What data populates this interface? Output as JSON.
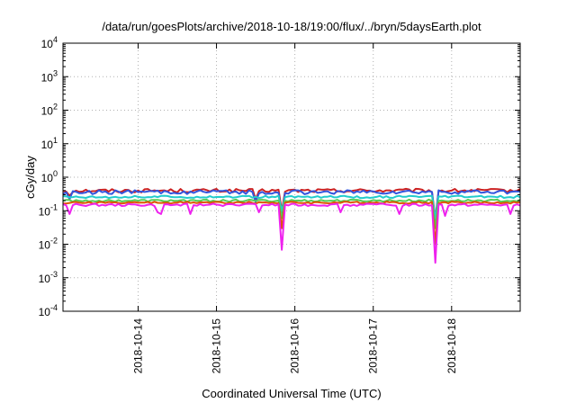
{
  "chart_data": {
    "type": "line",
    "title": "/data/run/goesPlots/archive/2018-10-18/19:00/flux/../bryn/5daysEarth.plot",
    "xlabel": "Coordinated Universal Time (UTC)",
    "ylabel": "cGy/day",
    "y_scale": "log",
    "ylim": [
      0.0001,
      10000
    ],
    "y_ticks": [
      {
        "base": "10",
        "exp": "-4"
      },
      {
        "base": "10",
        "exp": "-3"
      },
      {
        "base": "10",
        "exp": "-2"
      },
      {
        "base": "10",
        "exp": "-1"
      },
      {
        "base": "10",
        "exp": "0"
      },
      {
        "base": "10",
        "exp": "1"
      },
      {
        "base": "10",
        "exp": "2"
      },
      {
        "base": "10",
        "exp": "3"
      },
      {
        "base": "10",
        "exp": "4"
      }
    ],
    "xlim": [
      "2018-10-13T01:00",
      "2018-10-18T21:00"
    ],
    "x_ticks": [
      "2018-10-14",
      "2018-10-15",
      "2018-10-16",
      "2018-10-17",
      "2018-10-18"
    ],
    "grid": true,
    "series": [
      {
        "color": "#cc2222",
        "base": 0.4,
        "amp": 0.05,
        "dips": [
          [
            "2018-10-13T03:00",
            0.28
          ],
          [
            "2018-10-15T12:00",
            0.22
          ],
          [
            "2018-10-15T20:00",
            0.1
          ],
          [
            "2018-10-17T19:00",
            0.06
          ]
        ]
      },
      {
        "color": "#3355dd",
        "base": 0.36,
        "amp": 0.05,
        "dips": [
          [
            "2018-10-13T03:00",
            0.22
          ],
          [
            "2018-10-15T12:00",
            0.18
          ],
          [
            "2018-10-15T20:00",
            0.06
          ],
          [
            "2018-10-17T19:00",
            0.04
          ]
        ]
      },
      {
        "color": "#22cccc",
        "base": 0.26,
        "amp": 0.02,
        "dips": [
          [
            "2018-10-15T20:00",
            0.1
          ],
          [
            "2018-10-17T19:00",
            0.06
          ]
        ]
      },
      {
        "color": "#55cc55",
        "base": 0.2,
        "amp": 0.015,
        "dips": [
          [
            "2018-10-15T20:00",
            0.06
          ],
          [
            "2018-10-17T19:00",
            0.03
          ]
        ]
      },
      {
        "color": "#dd5500",
        "base": 0.175,
        "amp": 0.012,
        "dips": [
          [
            "2018-10-15T20:00",
            0.03
          ],
          [
            "2018-10-17T19:00",
            0.01
          ]
        ]
      },
      {
        "color": "#ee22ee",
        "base": 0.15,
        "amp": 0.012,
        "dips": [
          [
            "2018-10-13T03:00",
            0.08
          ],
          [
            "2018-10-14T06:00",
            0.09
          ],
          [
            "2018-10-14T07:00",
            0.08
          ],
          [
            "2018-10-14T16:00",
            0.08
          ],
          [
            "2018-10-15T13:00",
            0.09
          ],
          [
            "2018-10-15T20:00",
            0.0068
          ],
          [
            "2018-10-16T14:00",
            0.09
          ],
          [
            "2018-10-17T08:00",
            0.08
          ],
          [
            "2018-10-17T19:00",
            0.0028
          ],
          [
            "2018-10-17T22:00",
            0.07
          ],
          [
            "2018-10-18T18:00",
            0.08
          ]
        ]
      }
    ]
  }
}
